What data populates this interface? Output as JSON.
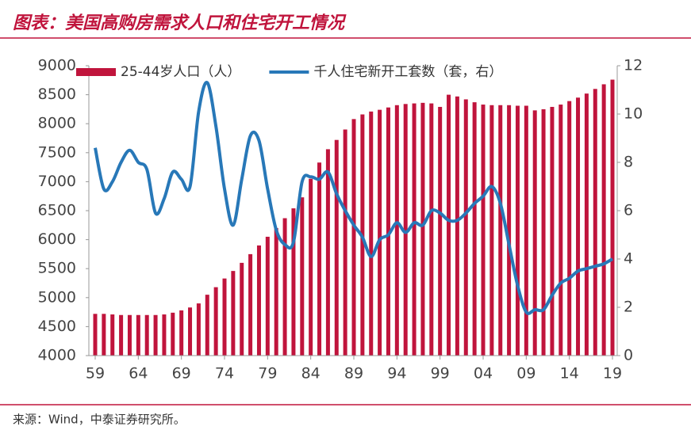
{
  "chart_data": {
    "type": "bar-line",
    "title": "图表：美国高购房需求人口和住宅开工情况",
    "source": "来源：Wind，中泰证券研究所。",
    "categories": [
      "59",
      null,
      null,
      null,
      null,
      "64",
      null,
      null,
      null,
      null,
      "69",
      null,
      null,
      null,
      null,
      "74",
      null,
      null,
      null,
      null,
      "79",
      null,
      null,
      null,
      null,
      "84",
      null,
      null,
      null,
      null,
      "89",
      null,
      null,
      null,
      null,
      "94",
      null,
      null,
      null,
      null,
      "99",
      null,
      null,
      null,
      null,
      "04",
      null,
      null,
      null,
      null,
      "09",
      null,
      null,
      null,
      null,
      "14",
      null,
      null,
      null,
      null,
      "19"
    ],
    "series": [
      {
        "name": "25-44岁人口（人）",
        "type": "bar",
        "color": "#c0143c",
        "values": [
          4720,
          4720,
          4710,
          4700,
          4700,
          4700,
          4700,
          4700,
          4710,
          4740,
          4780,
          4830,
          4900,
          5050,
          5180,
          5330,
          5460,
          5600,
          5750,
          5900,
          6050,
          6200,
          6370,
          6540,
          6730,
          7050,
          7330,
          7560,
          7720,
          7900,
          8080,
          8160,
          8210,
          8240,
          8280,
          8320,
          8340,
          8350,
          8360,
          8350,
          8290,
          8500,
          8470,
          8420,
          8370,
          8330,
          8320,
          8320,
          8320,
          8310,
          8310,
          8230,
          8250,
          8290,
          8330,
          8390,
          8450,
          8520,
          8600,
          8680,
          8760
        ]
      },
      {
        "name": "千人住宅新开工套数（套，右）",
        "type": "line",
        "axis": "y2",
        "color": "#2878b8",
        "values": [
          8.6,
          6.9,
          7.2,
          8.0,
          8.5,
          8.0,
          7.7,
          5.9,
          6.5,
          7.6,
          7.3,
          7.0,
          10.1,
          11.3,
          9.5,
          6.9,
          5.4,
          7.3,
          9.1,
          8.9,
          6.9,
          5.2,
          4.6,
          4.7,
          7.2,
          7.4,
          7.3,
          7.6,
          6.7,
          6.0,
          5.4,
          4.9,
          4.1,
          4.8,
          5.0,
          5.5,
          5.1,
          5.5,
          5.4,
          6.0,
          5.9,
          5.6,
          5.6,
          5.9,
          6.3,
          6.6,
          7.0,
          6.3,
          4.6,
          2.9,
          1.8,
          1.9,
          1.9,
          2.5,
          3.0,
          3.2,
          3.5,
          3.6,
          3.7,
          3.8,
          4.0
        ]
      }
    ],
    "ylim": [
      4000,
      9000
    ],
    "yticks": [
      4000,
      4500,
      5000,
      5500,
      6000,
      6500,
      7000,
      7500,
      8000,
      8500,
      9000
    ],
    "y2lim": [
      0,
      12
    ],
    "y2ticks": [
      0,
      2,
      4,
      6,
      8,
      10,
      12
    ],
    "legend": "top"
  }
}
